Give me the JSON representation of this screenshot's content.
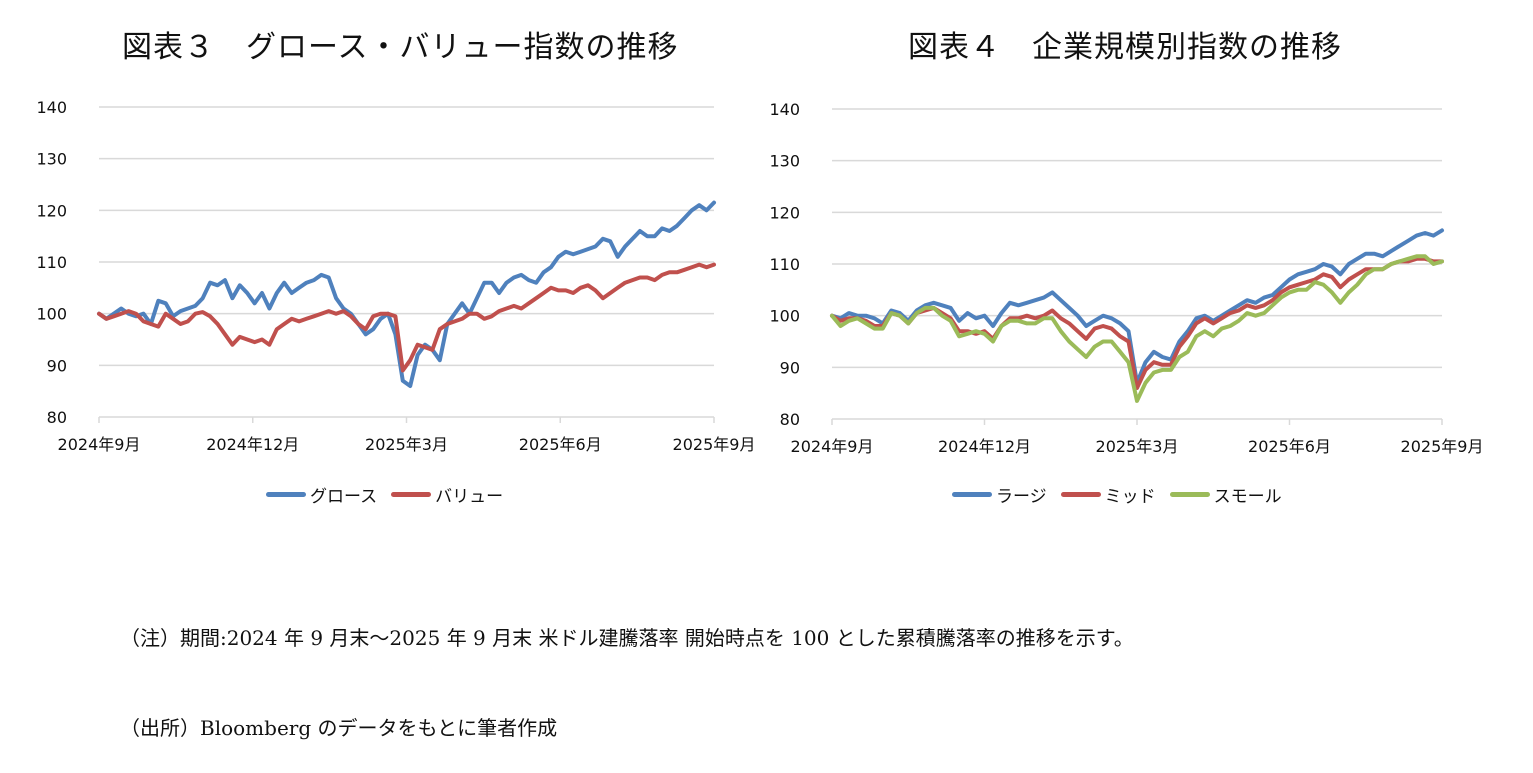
{
  "chart_data": [
    {
      "type": "line",
      "title": "図表３　グロース・バリュー指数の推移",
      "xlabel": "",
      "ylabel": "",
      "ylim": [
        80,
        140
      ],
      "yticks": [
        80,
        90,
        100,
        110,
        120,
        130,
        140
      ],
      "xtick_labels": [
        "2024年9月",
        "2024年12月",
        "2025年3月",
        "2025年6月",
        "2025年9月"
      ],
      "grid": true,
      "legend_position": "bottom",
      "series": [
        {
          "name": "グロース",
          "color": "#4f81bd",
          "values": [
            100,
            99,
            100,
            101,
            100,
            99.5,
            100,
            98,
            102.5,
            102,
            99.5,
            100.5,
            101,
            101.5,
            103,
            106,
            105.5,
            106.5,
            103,
            105.5,
            104,
            102,
            104,
            101,
            104,
            106,
            104,
            105,
            106,
            106.5,
            107.5,
            107,
            103,
            101,
            100,
            98,
            96,
            97,
            99,
            100,
            96,
            87,
            86,
            92,
            94,
            93,
            91,
            98,
            100,
            102,
            100,
            103,
            106,
            106,
            104,
            106,
            107,
            107.5,
            106.5,
            106,
            108,
            109,
            111,
            112,
            111.5,
            112,
            112.5,
            113,
            114.5,
            114,
            111,
            113,
            114.5,
            116,
            115,
            115,
            116.5,
            116,
            117,
            118.5,
            120,
            121,
            120,
            121.5
          ]
        },
        {
          "name": "バリュー",
          "color": "#c0504d",
          "values": [
            100,
            99,
            99.5,
            100,
            100.5,
            100,
            98.5,
            98,
            97.5,
            100,
            99,
            98,
            98.5,
            100,
            100.3,
            99.5,
            98,
            96,
            94,
            95.5,
            95,
            94.5,
            95,
            94,
            97,
            98,
            99,
            98.5,
            99,
            99.5,
            100,
            100.5,
            100,
            100.5,
            99.5,
            98,
            97,
            99.5,
            100,
            100,
            99.5,
            89,
            91,
            94,
            93.5,
            93,
            97,
            98,
            98.5,
            99,
            100,
            100,
            99,
            99.5,
            100.5,
            101,
            101.5,
            101,
            102,
            103,
            104,
            105,
            104.5,
            104.5,
            104,
            105,
            105.5,
            104.5,
            103,
            104,
            105,
            106,
            106.5,
            107,
            107,
            106.5,
            107.5,
            108,
            108,
            108.5,
            109,
            109.5,
            109,
            109.5
          ]
        }
      ]
    },
    {
      "type": "line",
      "title": "図表４　企業規模別指数の推移",
      "xlabel": "",
      "ylabel": "",
      "ylim": [
        80,
        140
      ],
      "yticks": [
        80,
        90,
        100,
        110,
        120,
        130,
        140
      ],
      "xtick_labels": [
        "2024年9月",
        "2024年12月",
        "2025年3月",
        "2025年6月",
        "2025年9月"
      ],
      "grid": true,
      "legend_position": "bottom",
      "series": [
        {
          "name": "ラージ",
          "color": "#4f81bd",
          "values": [
            100,
            99.5,
            100.5,
            100,
            100,
            99.5,
            98.5,
            101,
            100.5,
            99,
            101,
            102,
            102.5,
            102,
            101.5,
            99,
            100.5,
            99.5,
            100,
            98,
            100.5,
            102.5,
            102,
            102.5,
            103,
            103.5,
            104.5,
            103,
            101.5,
            100,
            98,
            99,
            100,
            99.5,
            98.5,
            97,
            87,
            91,
            93,
            92,
            91.5,
            95,
            97,
            99.5,
            100,
            99,
            100,
            101,
            102,
            103,
            102.5,
            103.5,
            104,
            105.5,
            107,
            108,
            108.5,
            109,
            110,
            109.5,
            108,
            110,
            111,
            112,
            112,
            111.5,
            112.5,
            113.5,
            114.5,
            115.5,
            116,
            115.5,
            116.5
          ]
        },
        {
          "name": "ミッド",
          "color": "#c0504d",
          "values": [
            100,
            99,
            99.5,
            99.5,
            99,
            98,
            98,
            100.5,
            100,
            98.5,
            100.5,
            101,
            101.5,
            100.5,
            99.5,
            97,
            97,
            96.5,
            97,
            95.5,
            98,
            99.5,
            99.5,
            100,
            99.5,
            100,
            101,
            99.5,
            98.5,
            97,
            95.5,
            97.5,
            98,
            97.5,
            96,
            95,
            86,
            89.5,
            91,
            90.5,
            90.5,
            94,
            96,
            98.5,
            99.5,
            98.5,
            99.5,
            100.5,
            101,
            102,
            101.5,
            102,
            103,
            104.5,
            105.5,
            106,
            106.5,
            107,
            108,
            107.5,
            105.5,
            107,
            108,
            109,
            109,
            109,
            110,
            110.5,
            110.5,
            111,
            111,
            110.5,
            110.5
          ]
        },
        {
          "name": "スモール",
          "color": "#9bbb59",
          "values": [
            100,
            98,
            99,
            99.5,
            98.5,
            97.5,
            97.5,
            100.5,
            100,
            98.5,
            100.5,
            101.5,
            101.5,
            100,
            99,
            96,
            96.5,
            97,
            96.5,
            95,
            98,
            99,
            99,
            98.5,
            98.5,
            99.5,
            99.5,
            97,
            95,
            93.5,
            92,
            94,
            95,
            95,
            93,
            91,
            83.5,
            87,
            89,
            89.5,
            89.5,
            92,
            93,
            96,
            97,
            96,
            97.5,
            98,
            99,
            100.5,
            100,
            100.5,
            102,
            103.5,
            104.5,
            105,
            105,
            106.5,
            106,
            104.5,
            102.5,
            104.5,
            106,
            108,
            109,
            109,
            110,
            110.5,
            111,
            111.5,
            111.5,
            110,
            110.5
          ]
        }
      ]
    }
  ],
  "notes": {
    "line1": "（注）期間:2024 年 9 月末～2025 年 9 月末 米ドル建騰落率 開始時点を 100 とした累積騰落率の推移を示す。",
    "line2": "（出所）Bloomberg のデータをもとに筆者作成"
  }
}
